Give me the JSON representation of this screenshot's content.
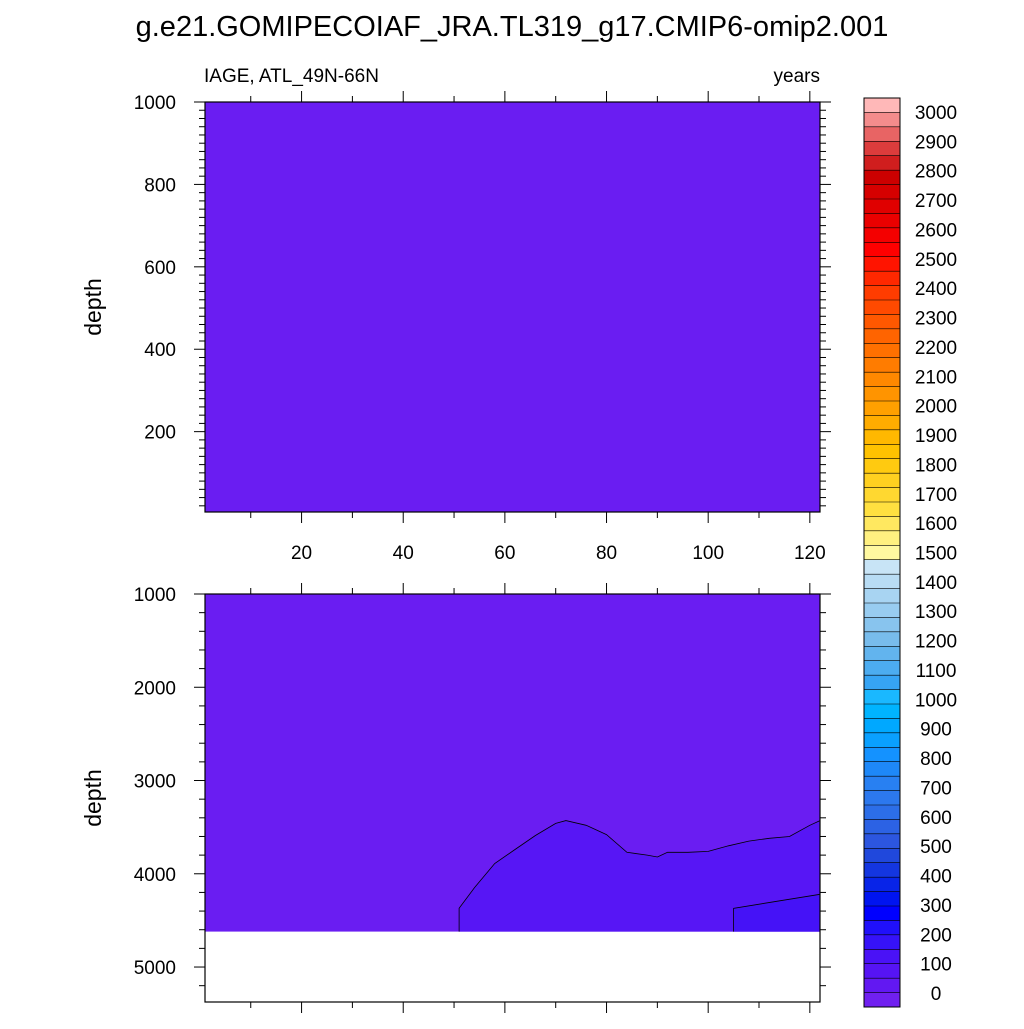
{
  "title": "g.e21.GOMIPECOIAF_JRA.TL319_g17.CMIP6-omip2.001",
  "subtitle_left": "IAGE, ATL_49N-66N",
  "subtitle_right": "years",
  "colors": {
    "background_fill": "#6a1df2",
    "deep_fill": "#5716f5",
    "deepest_fill": "#4512f7",
    "missing_fill": "#ffffff",
    "contour_line": "#000000"
  },
  "chart_data": [
    {
      "type": "contour",
      "panel": "upper",
      "xlabel": "",
      "ylabel": "depth",
      "xlim": [
        1,
        122
      ],
      "ylim": [
        1000,
        5
      ],
      "y_inverted": true,
      "xticks": [
        20,
        40,
        60,
        80,
        100,
        120
      ],
      "yticks": [
        200,
        400,
        600,
        800,
        1000
      ],
      "contours": []
    },
    {
      "type": "contour",
      "panel": "lower",
      "xlabel": "",
      "ylabel": "depth",
      "xlim": [
        1,
        122
      ],
      "ylim": [
        1000,
        5375
      ],
      "y_inverted": true,
      "yticks": [
        1000,
        2000,
        3000,
        4000,
        5000
      ],
      "missing_below_depth": 4620,
      "contours": [
        {
          "level": 100,
          "points": [
            [
              51,
              4620
            ],
            [
              51,
              4370
            ],
            [
              54,
              4150
            ],
            [
              58,
              3890
            ],
            [
              62,
              3740
            ],
            [
              66,
              3590
            ],
            [
              70,
              3460
            ],
            [
              72,
              3430
            ],
            [
              76,
              3480
            ],
            [
              80,
              3580
            ],
            [
              84,
              3770
            ],
            [
              88,
              3800
            ],
            [
              90,
              3820
            ],
            [
              92,
              3770
            ],
            [
              96,
              3770
            ],
            [
              100,
              3760
            ],
            [
              104,
              3700
            ],
            [
              108,
              3650
            ],
            [
              112,
              3620
            ],
            [
              116,
              3600
            ],
            [
              120,
              3480
            ],
            [
              122,
              3430
            ]
          ]
        },
        {
          "level": 200,
          "points": [
            [
              105,
              4620
            ],
            [
              105,
              4370
            ],
            [
              113,
              4300
            ],
            [
              122,
              4220
            ]
          ]
        }
      ]
    }
  ],
  "colorbar": {
    "labels": [
      "3000",
      "2900",
      "2800",
      "2700",
      "2600",
      "2500",
      "2400",
      "2300",
      "2200",
      "2100",
      "2000",
      "1900",
      "1800",
      "1700",
      "1600",
      "1500",
      "1400",
      "1300",
      "1200",
      "1100",
      "1000",
      "900",
      "800",
      "700",
      "600",
      "500",
      "400",
      "300",
      "200",
      "100",
      "0"
    ],
    "colors": [
      "#ffb8b8",
      "#f48c8c",
      "#e86464",
      "#dc3c3c",
      "#d01e1e",
      "#cc0000",
      "#d60000",
      "#e00000",
      "#ea0000",
      "#f40000",
      "#ff0000",
      "#ff1400",
      "#ff2800",
      "#ff3c00",
      "#ff4a00",
      "#ff5800",
      "#ff6400",
      "#ff7000",
      "#ff7c00",
      "#ff8800",
      "#ff9400",
      "#ffa000",
      "#ffac00",
      "#ffb800",
      "#ffc200",
      "#ffca10",
      "#ffd020",
      "#ffd830",
      "#ffe040",
      "#ffe860",
      "#fff080",
      "#fff8a0",
      "#c8e4f6",
      "#b8dcf4",
      "#a8d4f2",
      "#98ccf0",
      "#88c4ee",
      "#78bcec",
      "#62b4ee",
      "#4cacf0",
      "#36a4f4",
      "#1ab8ff",
      "#00b4ff",
      "#00a8ff",
      "#0aa0ff",
      "#1492ff",
      "#1e88f8",
      "#2880f2",
      "#2c78ee",
      "#2c6ee8",
      "#2c62e4",
      "#2c56e0",
      "#2048dc",
      "#1436e0",
      "#0824e8",
      "#0014f0",
      "#0000ff",
      "#2010fa",
      "#3612f8",
      "#4a12f6",
      "#5614f4",
      "#6218f2",
      "#7020f0"
    ]
  }
}
